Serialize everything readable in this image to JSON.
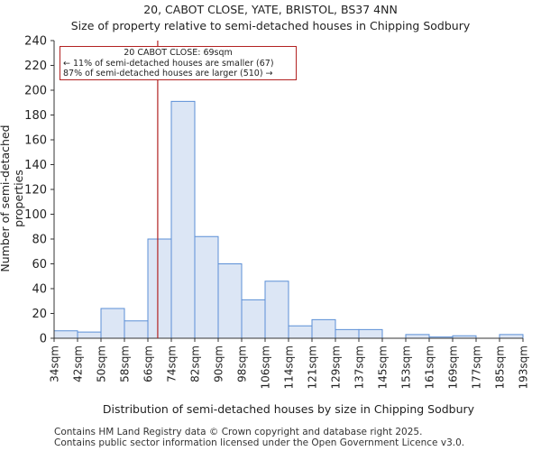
{
  "title": "20, CABOT CLOSE, YATE, BRISTOL, BS37 4NN",
  "subtitle": "Size of property relative to semi-detached houses in Chipping Sodbury",
  "annotation": {
    "line1": "20 CABOT CLOSE: 69sqm",
    "line2": "← 11% of semi-detached houses are smaller (67)",
    "line3": "87% of semi-detached houses are larger (510) →"
  },
  "footer": {
    "line1": "Contains HM Land Registry data © Crown copyright and database right 2025.",
    "line2": "Contains public sector information licensed under the Open Government Licence v3.0."
  },
  "chart_data": {
    "type": "bar",
    "title": "20, CABOT CLOSE, YATE, BRISTOL, BS37 4NN",
    "subtitle": "Size of property relative to semi-detached houses in Chipping Sodbury",
    "xlabel": "Distribution of semi-detached houses by size in Chipping Sodbury",
    "ylabel": "Number of semi-detached properties",
    "ylim": [
      0,
      240
    ],
    "yticks": [
      0,
      20,
      40,
      60,
      80,
      100,
      120,
      140,
      160,
      180,
      200,
      220,
      240
    ],
    "tick_labels": [
      "34sqm",
      "42sqm",
      "50sqm",
      "58sqm",
      "66sqm",
      "74sqm",
      "82sqm",
      "90sqm",
      "98sqm",
      "106sqm",
      "114sqm",
      "121sqm",
      "129sqm",
      "137sqm",
      "145sqm",
      "153sqm",
      "161sqm",
      "169sqm",
      "177sqm",
      "185sqm",
      "193sqm"
    ],
    "values": [
      6,
      5,
      24,
      14,
      80,
      191,
      82,
      60,
      31,
      46,
      10,
      15,
      7,
      7,
      0,
      3,
      1,
      2,
      0,
      3
    ],
    "marker_value": 69,
    "marker_position_bins": 4.42,
    "bar_color": "#dce6f5",
    "bar_edge_color": "#5b8fd6",
    "marker_color": "#b22222",
    "grid": false
  }
}
